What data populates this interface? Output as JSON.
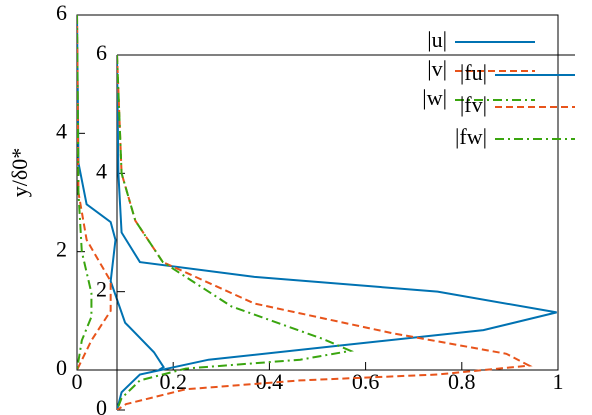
{
  "chart_data": [
    {
      "type": "line",
      "ylabel": "y/δ0*",
      "xlim": [
        0,
        1
      ],
      "ylim": [
        0,
        6
      ],
      "xticks": [
        0,
        0.2,
        0.4,
        0.6,
        0.8,
        1
      ],
      "yticks": [
        0,
        2,
        4,
        6
      ],
      "series": [
        {
          "name": "|u|",
          "color": "#0072b2",
          "dash": "solid",
          "x": [
            0,
            0.003,
            0.02,
            0.07,
            0.08,
            0.07,
            0.1,
            0.16,
            0.18,
            0.17
          ],
          "values": [
            6,
            3.5,
            2.8,
            2.5,
            2.2,
            1.5,
            0.8,
            0.3,
            0.05,
            0
          ]
        },
        {
          "name": "|v|",
          "color": "#e8541b",
          "dash": "dashed",
          "x": [
            0,
            0.003,
            0.02,
            0.07,
            0.07,
            0.03,
            0
          ],
          "values": [
            6,
            3,
            2.2,
            1.5,
            1.0,
            0.5,
            0
          ]
        },
        {
          "name": "|w|",
          "color": "#3aa50f",
          "dash": "dashdot",
          "x": [
            0,
            0.003,
            0.01,
            0.03,
            0.03,
            0.01,
            0
          ],
          "values": [
            6,
            3,
            2,
            1.3,
            0.9,
            0.5,
            0
          ]
        }
      ]
    },
    {
      "type": "line",
      "xlim": [
        0,
        1
      ],
      "ylim": [
        0,
        6
      ],
      "yticks": [
        0,
        2,
        4,
        6
      ],
      "series": [
        {
          "name": "|fu|",
          "color": "#0072b2",
          "dash": "solid",
          "x": [
            0,
            0.003,
            0.01,
            0.05,
            0.3,
            0.7,
            0.96,
            0.8,
            0.5,
            0.2,
            0.05,
            0.01,
            0
          ],
          "values": [
            6,
            4,
            3,
            2.5,
            2.25,
            2.0,
            1.65,
            1.35,
            1.1,
            0.85,
            0.6,
            0.3,
            0
          ]
        },
        {
          "name": "|fv|",
          "color": "#e8541b",
          "dash": "dashed",
          "x": [
            0,
            0.01,
            0.04,
            0.1,
            0.3,
            0.6,
            0.85,
            0.9,
            0.7,
            0.4,
            0.15,
            0.02,
            0
          ],
          "values": [
            6,
            4,
            3.2,
            2.5,
            1.8,
            1.3,
            0.95,
            0.75,
            0.6,
            0.5,
            0.35,
            0.1,
            0
          ]
        },
        {
          "name": "|fw|",
          "color": "#3aa50f",
          "dash": "dashdot",
          "x": [
            0,
            0.01,
            0.04,
            0.1,
            0.25,
            0.45,
            0.51,
            0.4,
            0.15,
            0.05,
            0.01,
            0
          ],
          "values": [
            6,
            4,
            3.2,
            2.5,
            1.75,
            1.2,
            1.0,
            0.85,
            0.7,
            0.5,
            0.2,
            0
          ]
        }
      ]
    }
  ]
}
